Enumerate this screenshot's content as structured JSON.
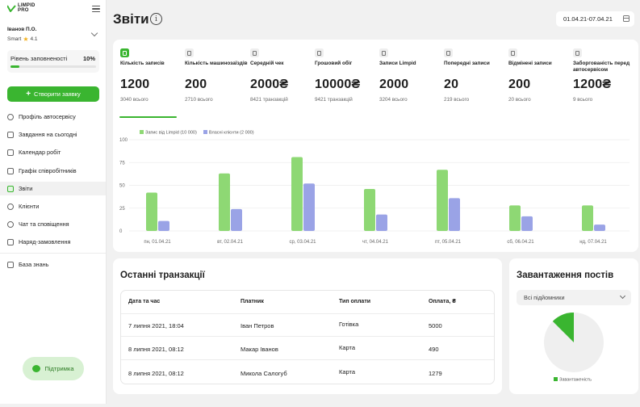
{
  "app": {
    "logo_line1": "LIMPID",
    "logo_line2": "PRO"
  },
  "user": {
    "name": "Іванов П.О.",
    "plan": "Smart",
    "rating": "4.1"
  },
  "fill": {
    "label": "Рівень заповненості",
    "value": "10%",
    "fraction": 0.1
  },
  "sidebar": {
    "create_label": "Створити заявку",
    "items": [
      {
        "label": "Профіль автосервісу",
        "icon": "gear-icon"
      },
      {
        "label": "Завдання на сьогодні",
        "icon": "tasks-icon"
      },
      {
        "label": "Календар робіт",
        "icon": "calendar-icon"
      },
      {
        "label": "Графік співробітників",
        "icon": "schedule-icon"
      },
      {
        "label": "Звіти",
        "icon": "reports-icon",
        "active": true
      },
      {
        "label": "Клієнти",
        "icon": "users-icon"
      },
      {
        "label": "Чат та сповіщення",
        "icon": "chat-icon"
      },
      {
        "label": "Наряд-замовлення",
        "icon": "order-icon"
      },
      {
        "label": "База знань",
        "icon": "book-icon"
      }
    ],
    "support_label": "Підтримка"
  },
  "header": {
    "title": "Звіти",
    "info_glyph": "i",
    "date_range": "01.04.21-07.04.21"
  },
  "stats": [
    {
      "label": "Кількість записів",
      "value": "1200",
      "sub": "3040 всього",
      "active": true
    },
    {
      "label": "Кількість машинозаїздів",
      "value": "200",
      "sub": "2710 всього"
    },
    {
      "label": "Середній чек",
      "value": "2000₴",
      "sub": "8421 транзакцій"
    },
    {
      "label": "Грошовий обіг",
      "value": "10000₴",
      "sub": "9421 транзакцій"
    },
    {
      "label": "Записи Limpid",
      "value": "2000",
      "sub": "3204 всього"
    },
    {
      "label": "Попередні записи",
      "value": "20",
      "sub": "219 всього"
    },
    {
      "label": "Відмінені записи",
      "value": "200",
      "sub": "20 всього"
    },
    {
      "label": "Заборгованість перед автосервісом",
      "value": "1200₴",
      "sub": "9 всього"
    }
  ],
  "chart_data": {
    "type": "bar",
    "categories": [
      "пн, 01.04.21",
      "вт, 02.04.21",
      "ср, 03.04.21",
      "чт, 04.04.21",
      "пт, 05.04.21",
      "сб, 06.04.21",
      "нд, 07.04.21"
    ],
    "series": [
      {
        "name": "Запис від Limpid (10 000)",
        "color": "#8ed874",
        "values": [
          42,
          63,
          81,
          46,
          67,
          28,
          28
        ]
      },
      {
        "name": "Власні клієнти (2 000)",
        "color": "#9aa3e6",
        "values": [
          11,
          24,
          52,
          18,
          36,
          16,
          7
        ]
      }
    ],
    "ylim": [
      0,
      100
    ],
    "yticks": [
      0,
      25,
      50,
      75,
      100
    ],
    "grid": true,
    "legend_position": "top-left"
  },
  "transactions": {
    "title": "Останні транзакції",
    "columns": [
      "Дата та час",
      "Платник",
      "Тип оплати",
      "Оплата, ₴"
    ],
    "rows": [
      [
        "7 липня 2021, 18:04",
        "Іван Петров",
        "Готівка",
        "5000"
      ],
      [
        "8 липня 2021, 08:12",
        "Макар Іванов",
        "Карта",
        "490"
      ],
      [
        "8 липня 2021, 08:12",
        "Микола Салогуб",
        "Карта",
        "1279"
      ]
    ]
  },
  "load": {
    "title": "Завантаження постів",
    "filter": "Всі підйомники",
    "legend": "Завантаженість",
    "fraction": 0.125,
    "color": "#3ab530"
  }
}
